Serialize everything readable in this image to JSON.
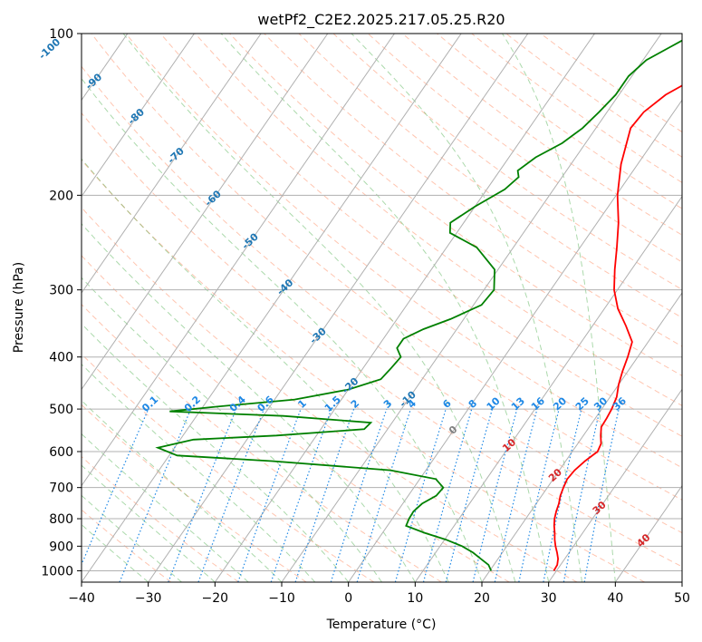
{
  "chart_data": {
    "type": "line",
    "subtype": "skew-t log-p diagram",
    "title": "wetPf2_C2E2.2025.217.05.25.R20",
    "xlabel": "Temperature (°C)",
    "ylabel": "Pressure (hPa)",
    "xlim": [
      -40,
      50
    ],
    "ylim": [
      1050,
      100
    ],
    "y_scale": "log",
    "x_ticks": [
      -40,
      -30,
      -20,
      -10,
      0,
      10,
      20,
      30,
      40,
      50
    ],
    "y_ticks": [
      100,
      200,
      300,
      400,
      500,
      600,
      700,
      800,
      900,
      1000
    ],
    "grid": true,
    "series": [
      {
        "color": "#ff0000",
        "style": "solid",
        "points": [
          [
            1000,
            29.6
          ],
          [
            975,
            29.5
          ],
          [
            950,
            29.0
          ],
          [
            925,
            28.2
          ],
          [
            900,
            27.3
          ],
          [
            875,
            26.5
          ],
          [
            850,
            25.8
          ],
          [
            825,
            25.0
          ],
          [
            800,
            24.3
          ],
          [
            775,
            23.8
          ],
          [
            750,
            23.4
          ],
          [
            725,
            22.8
          ],
          [
            700,
            22.4
          ],
          [
            675,
            22.1
          ],
          [
            650,
            22.3
          ],
          [
            625,
            22.9
          ],
          [
            600,
            23.8
          ],
          [
            580,
            23.5
          ],
          [
            560,
            22.6
          ],
          [
            540,
            21.8
          ],
          [
            520,
            21.7
          ],
          [
            500,
            21.5
          ],
          [
            475,
            21.0
          ],
          [
            450,
            20.0
          ],
          [
            425,
            19.2
          ],
          [
            400,
            18.5
          ],
          [
            375,
            17.6
          ],
          [
            350,
            15.0
          ],
          [
            325,
            12.0
          ],
          [
            300,
            9.5
          ],
          [
            275,
            7.5
          ],
          [
            250,
            5.5
          ],
          [
            225,
            3.2
          ],
          [
            200,
            0.2
          ],
          [
            175,
            -2.5
          ],
          [
            150,
            -4.8
          ],
          [
            140,
            -4.5
          ],
          [
            130,
            -3.0
          ],
          [
            125,
            -1.5
          ],
          [
            120,
            0.5
          ],
          [
            115,
            2.5
          ],
          [
            110,
            3.9
          ],
          [
            105,
            4.6
          ],
          [
            100,
            4.8
          ]
        ]
      },
      {
        "color": "#008000",
        "style": "solid",
        "points": [
          [
            1000,
            20.2
          ],
          [
            975,
            19.2
          ],
          [
            950,
            17.4
          ],
          [
            925,
            15.6
          ],
          [
            900,
            13.3
          ],
          [
            875,
            10.2
          ],
          [
            850,
            6.3
          ],
          [
            825,
            2.8
          ],
          [
            800,
            2.5
          ],
          [
            775,
            2.4
          ],
          [
            750,
            2.9
          ],
          [
            725,
            4.2
          ],
          [
            700,
            4.4
          ],
          [
            675,
            2.4
          ],
          [
            650,
            -5.3
          ],
          [
            625,
            -24.0
          ],
          [
            610,
            -38.8
          ],
          [
            590,
            -42.5
          ],
          [
            570,
            -38.0
          ],
          [
            560,
            -26.0
          ],
          [
            545,
            -13.5
          ],
          [
            530,
            -13.2
          ],
          [
            515,
            -27.0
          ],
          [
            505,
            -44.5
          ],
          [
            495,
            -38.0
          ],
          [
            480,
            -27.0
          ],
          [
            460,
            -20.0
          ],
          [
            440,
            -16.2
          ],
          [
            420,
            -15.8
          ],
          [
            400,
            -15.5
          ],
          [
            385,
            -17.0
          ],
          [
            370,
            -17.0
          ],
          [
            355,
            -15.0
          ],
          [
            340,
            -12.0
          ],
          [
            320,
            -8.8
          ],
          [
            300,
            -8.5
          ],
          [
            275,
            -10.5
          ],
          [
            250,
            -15.5
          ],
          [
            235,
            -21.0
          ],
          [
            225,
            -22.0
          ],
          [
            210,
            -20.0
          ],
          [
            195,
            -17.3
          ],
          [
            185,
            -16.5
          ],
          [
            180,
            -17.3
          ],
          [
            170,
            -16.0
          ],
          [
            160,
            -13.5
          ],
          [
            150,
            -12.0
          ],
          [
            140,
            -11.2
          ],
          [
            130,
            -10.5
          ],
          [
            120,
            -10.5
          ],
          [
            112,
            -9.5
          ],
          [
            106,
            -7.3
          ],
          [
            100,
            -5.0
          ]
        ]
      }
    ],
    "isotherm_labels": [
      "-100",
      "-90",
      "-80",
      "-70",
      "-60",
      "-50",
      "-40",
      "-30",
      "-20",
      "-10"
    ],
    "mixing_ratio_labels": [
      "0.1",
      "0.2",
      "0.4",
      "0.6",
      "1",
      "1.5",
      "2",
      "3",
      "4",
      "6",
      "8",
      "10",
      "13",
      "16",
      "20",
      "25",
      "30",
      "36"
    ],
    "zero_label": "0",
    "positive_isotherm_labels": [
      "10",
      "20",
      "30",
      "40"
    ],
    "colors": {
      "temperature": "#ff0000",
      "dewpoint": "#008000",
      "isotherm": "#1f77b4",
      "mixing_ratio": "#1e88e5",
      "dry_adiabat": "#ff7f50",
      "moist_adiabat": "#2ca02c",
      "positive_isotherm": "#d62728",
      "grid": "#b0b0b0"
    }
  }
}
